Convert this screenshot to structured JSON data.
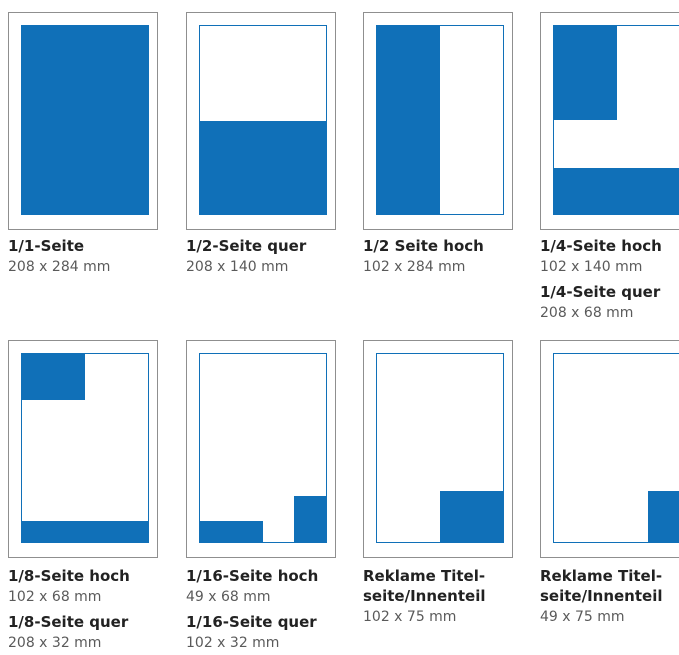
{
  "accent_color": "#1070b8",
  "items": [
    {
      "title": "1/1-Seite",
      "size": "208 x 284 mm"
    },
    {
      "title": "1/2-Seite quer",
      "size": "208 x 140 mm"
    },
    {
      "title": "1/2 Seite hoch",
      "size": "102 x 284 mm"
    },
    {
      "title": "1/4-Seite hoch",
      "size": "102 x 140 mm",
      "title2": "1/4-Seite quer",
      "size2": "208 x 68 mm"
    },
    {
      "title": "1/8-Seite hoch",
      "size": "102 x 68 mm",
      "title2": "1/8-Seite quer",
      "size2": "208 x 32 mm"
    },
    {
      "title": "1/16-Seite hoch",
      "size": "49 x 68 mm",
      "title2": "1/16-Seite quer",
      "size2": "102 x 32 mm"
    },
    {
      "title": "Reklame Titel-\nseite/Innenteil",
      "size": "102 x 75 mm"
    },
    {
      "title": "Reklame Titel-\nseite/Innenteil",
      "size": "49 x 75 mm"
    }
  ]
}
